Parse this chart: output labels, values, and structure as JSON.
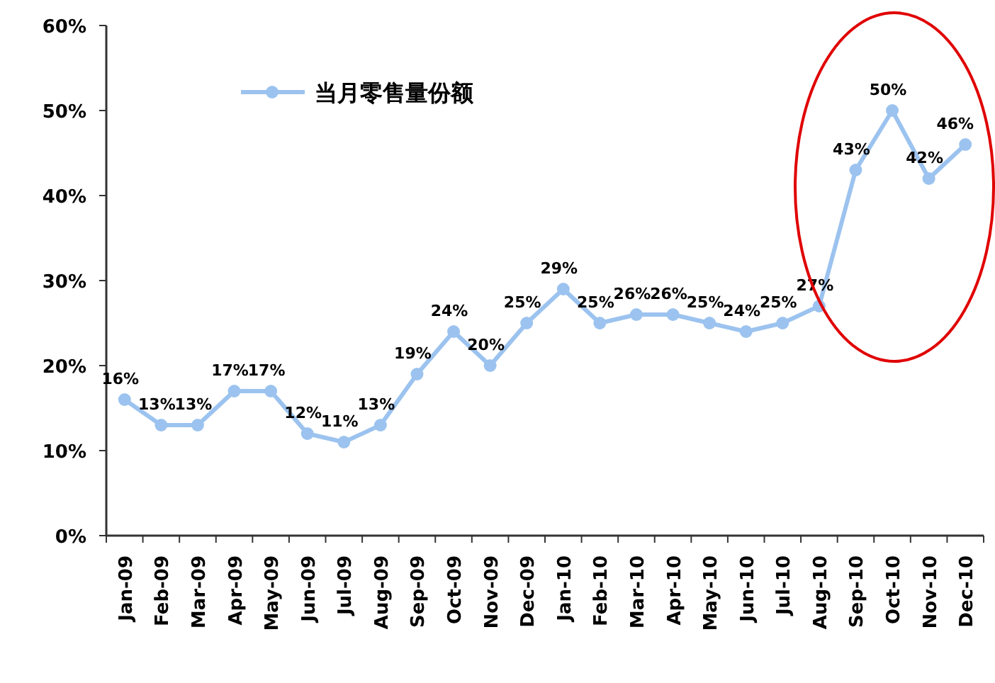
{
  "chart_data": {
    "type": "line",
    "categories": [
      "Jan-09",
      "Feb-09",
      "Mar-09",
      "Apr-09",
      "May-09",
      "Jun-09",
      "Jul-09",
      "Aug-09",
      "Sep-09",
      "Oct-09",
      "Nov-09",
      "Dec-09",
      "Jan-10",
      "Feb-10",
      "Mar-10",
      "Apr-10",
      "May-10",
      "Jun-10",
      "Jul-10",
      "Aug-10",
      "Sep-10",
      "Oct-10",
      "Nov-10",
      "Dec-10"
    ],
    "series": [
      {
        "name": "当月零售量份额",
        "color": "#9cc3ef",
        "values": [
          16,
          13,
          13,
          17,
          17,
          12,
          11,
          13,
          19,
          24,
          20,
          25,
          29,
          25,
          26,
          26,
          25,
          24,
          25,
          27,
          43,
          50,
          42,
          46
        ]
      }
    ],
    "ylim": [
      0,
      60
    ],
    "yticks": [
      {
        "value": 0,
        "label": "0%"
      },
      {
        "value": 10,
        "label": "10%"
      },
      {
        "value": 20,
        "label": "20%"
      },
      {
        "value": 30,
        "label": "30%"
      },
      {
        "value": 40,
        "label": "40%"
      },
      {
        "value": 50,
        "label": "50%"
      },
      {
        "value": 60,
        "label": "60%"
      }
    ],
    "value_labels": [
      "16%",
      "13%",
      "13%",
      "17%",
      "17%",
      "12%",
      "11%",
      "13%",
      "19%",
      "24%",
      "20%",
      "25%",
      "29%",
      "25%",
      "26%",
      "26%",
      "25%",
      "24%",
      "25%",
      "27%",
      "43%",
      "50%",
      "42%",
      "46%"
    ],
    "marker": "circle",
    "legend": "top left",
    "grid": false
  }
}
